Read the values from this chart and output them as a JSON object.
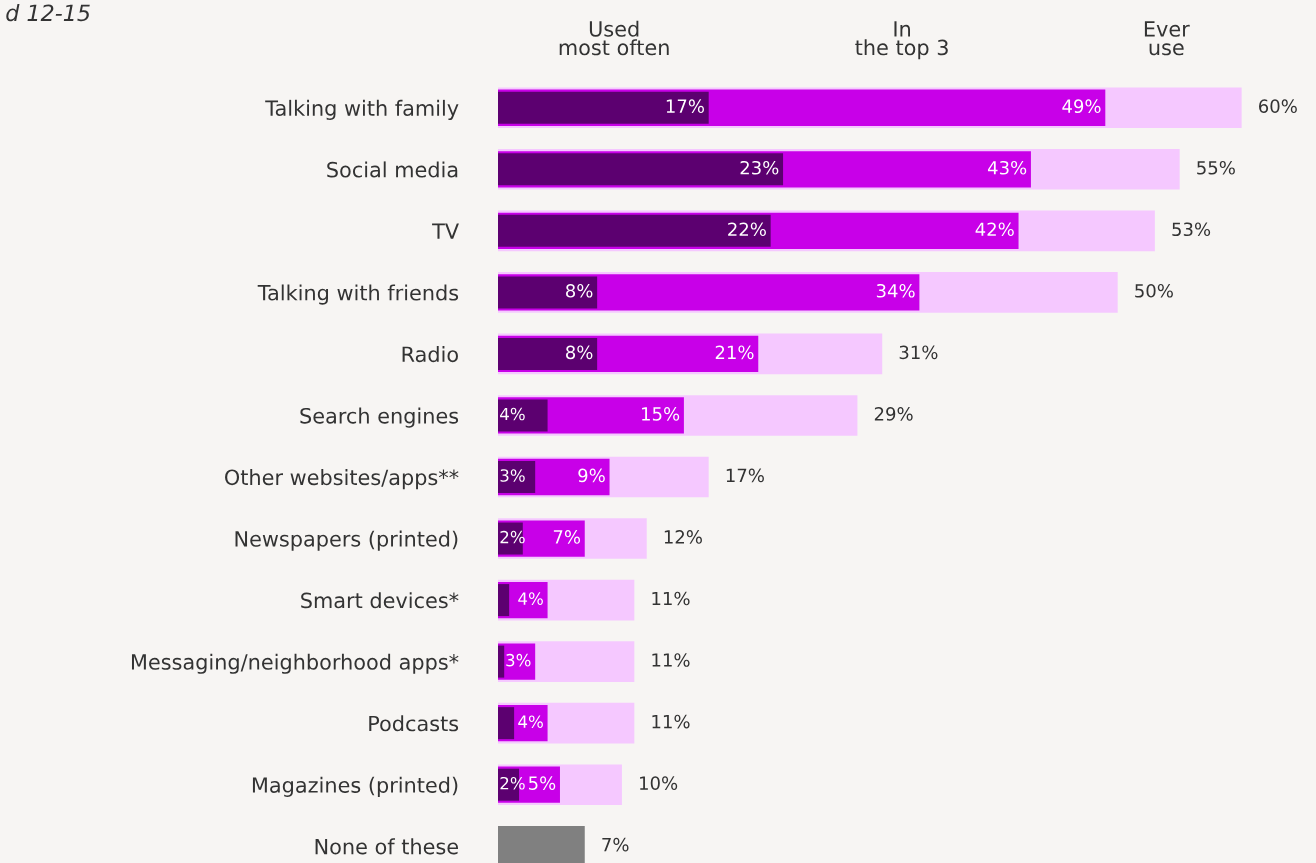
{
  "chart_data": {
    "type": "bar",
    "orientation": "horizontal",
    "title": "d 12-15",
    "categories": [
      "Talking with family",
      "Social media",
      "TV",
      "Talking with friends",
      "Radio",
      "Search engines",
      "Other websites/apps**",
      "Newspapers (printed)",
      "Smart devices*",
      "Messaging/neighborhood apps*",
      "Podcasts",
      "Magazines (printed)",
      "None of these"
    ],
    "series": [
      {
        "name": "Ever use",
        "color": "#f5c8ff",
        "colors": [
          "#f5c8ff",
          "#f5c8ff",
          "#f5c8ff",
          "#f5c8ff",
          "#f5c8ff",
          "#f5c8ff",
          "#f5c8ff",
          "#f5c8ff",
          "#f5c8ff",
          "#f5c8ff",
          "#f5c8ff",
          "#f5c8ff",
          "#808080"
        ],
        "values": [
          60,
          55,
          53,
          50,
          31,
          29,
          17,
          12,
          11,
          11,
          11,
          10,
          7
        ],
        "value_labels": [
          "60%",
          "55%",
          "53%",
          "50%",
          "31%",
          "29%",
          "17%",
          "12%",
          "11%",
          "11%",
          "11%",
          "10%",
          "7%"
        ]
      },
      {
        "name": "In the top 3",
        "color": "#c800e8",
        "values": [
          49,
          43,
          42,
          34,
          21,
          15,
          9,
          7,
          4,
          3,
          4,
          5,
          null
        ],
        "value_labels": [
          "49%",
          "43%",
          "42%",
          "34%",
          "21%",
          "15%",
          "9%",
          "7%",
          "4%",
          "3%",
          "4%",
          "5%",
          null
        ]
      },
      {
        "name": "Used most often",
        "color": "#5c0070",
        "values": [
          17,
          23,
          22,
          8,
          8,
          4,
          3,
          2,
          0.9,
          0.5,
          1.3,
          1.7,
          null
        ],
        "value_labels": [
          "17%",
          "23%",
          "22%",
          "8%",
          "8%",
          "4%",
          "3%",
          "2%",
          null,
          null,
          null,
          "2%",
          null
        ]
      }
    ],
    "xlim": [
      0,
      66
    ],
    "tick_labels": "y",
    "grid": false,
    "legend": "top"
  }
}
